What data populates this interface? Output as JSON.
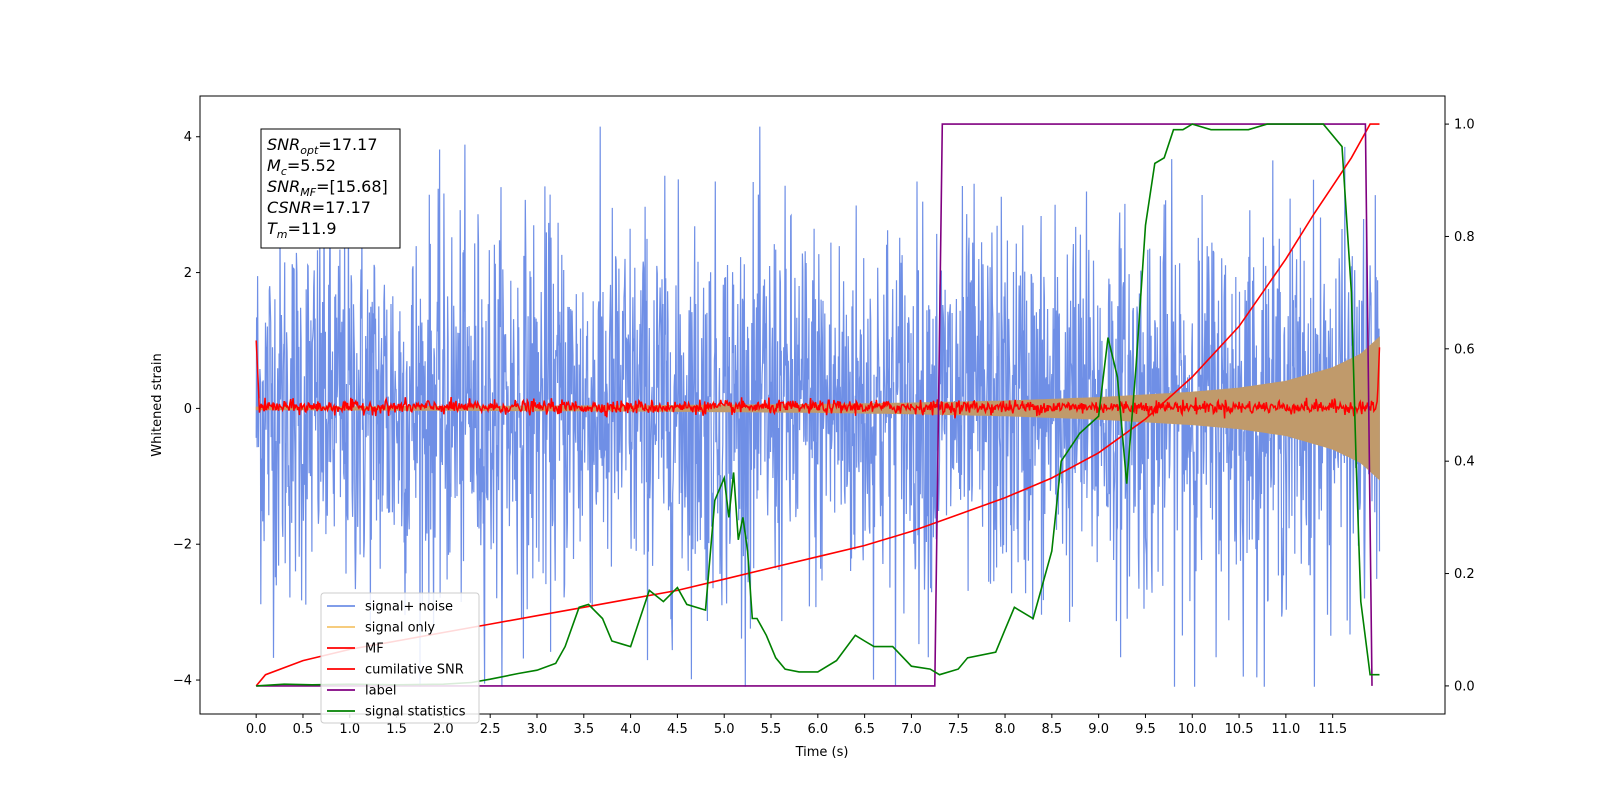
{
  "chart_data": {
    "type": "line",
    "title": "",
    "xlabel": "Time (s)",
    "ylabel": "Whitened strain",
    "xlim": [
      -0.6,
      12.7
    ],
    "ylim": [
      -4.5,
      4.6
    ],
    "y2lim": [
      -0.05,
      1.05
    ],
    "xticks": [
      0.0,
      0.5,
      1.0,
      1.5,
      2.0,
      2.5,
      3.0,
      3.5,
      4.0,
      4.5,
      5.0,
      5.5,
      6.0,
      6.5,
      7.0,
      7.5,
      8.0,
      8.5,
      9.0,
      9.5,
      10.0,
      10.5,
      11.0,
      11.5
    ],
    "xtick_labels": [
      "0.0",
      "0.5",
      "1.0",
      "1.5",
      "2.0",
      "2.5",
      "3.0",
      "3.5",
      "4.0",
      "4.5",
      "5.0",
      "5.5",
      "6.0",
      "6.5",
      "7.0",
      "7.5",
      "8.0",
      "8.5",
      "9.0",
      "9.5",
      "10.0",
      "10.5",
      "11.0",
      "11.5"
    ],
    "yticks": [
      -4,
      -2,
      0,
      2,
      4
    ],
    "ytick_labels": [
      "−4",
      "−2",
      "0",
      "2",
      "4"
    ],
    "y2ticks": [
      0.0,
      0.2,
      0.4,
      0.6,
      0.8,
      1.0
    ],
    "y2tick_labels": [
      "0.0",
      "0.2",
      "0.4",
      "0.6",
      "0.8",
      "1.0"
    ],
    "legend_position": "lower-left",
    "grid": false,
    "annotation": [
      {
        "sym": "SNR",
        "sub": "opt",
        "value": "=17.17"
      },
      {
        "sym": "M",
        "sub": "c",
        "value": "=5.52"
      },
      {
        "sym": "SNR",
        "sub": "MF",
        "value": "=[15.68]"
      },
      {
        "sym": "CSNR",
        "sub": "",
        "value": "=17.17"
      },
      {
        "sym": "T",
        "sub": "m",
        "value": "=11.9"
      }
    ],
    "series": [
      {
        "name": "signal+ noise",
        "color": "#6f8fe6",
        "axis": "left",
        "kind": "noise",
        "t_end": 12.0,
        "amplitude": 1.4
      },
      {
        "name": "signal only",
        "color": "#f5c56b",
        "axis": "left",
        "kind": "chirp-envelope",
        "t_end": 12.0,
        "envelope_x": [
          0,
          2,
          4,
          6,
          7,
          8,
          9,
          10,
          10.5,
          11,
          11.5,
          11.8,
          12.0
        ],
        "envelope_y": [
          0.02,
          0.03,
          0.04,
          0.06,
          0.08,
          0.11,
          0.16,
          0.24,
          0.3,
          0.4,
          0.6,
          0.8,
          1.05
        ]
      },
      {
        "name": "MF",
        "color": "#ff0000",
        "axis": "left",
        "kind": "mf-noise",
        "t_end": 12.0,
        "amplitude": 0.05
      },
      {
        "name": "cumilative SNR",
        "color": "#ff0000",
        "axis": "right",
        "x": [
          0,
          0.1,
          0.5,
          1,
          1.5,
          2,
          2.5,
          3,
          3.5,
          4,
          4.5,
          5,
          5.5,
          6,
          6.5,
          7,
          7.5,
          8,
          8.5,
          9,
          9.5,
          10,
          10.5,
          11,
          11.3,
          11.5,
          11.7,
          11.8,
          11.9,
          12.0
        ],
        "y": [
          0.0,
          0.02,
          0.045,
          0.065,
          0.08,
          0.095,
          0.11,
          0.125,
          0.14,
          0.155,
          0.17,
          0.19,
          0.21,
          0.23,
          0.25,
          0.275,
          0.305,
          0.335,
          0.37,
          0.415,
          0.475,
          0.55,
          0.64,
          0.76,
          0.84,
          0.89,
          0.94,
          0.97,
          1.0,
          1.0
        ]
      },
      {
        "name": "label",
        "color": "#800080",
        "axis": "right",
        "x": [
          0,
          7.25,
          7.33,
          11.85,
          11.92
        ],
        "y": [
          0,
          0,
          1,
          1,
          0
        ]
      },
      {
        "name": "signal statistics",
        "color": "#008000",
        "axis": "right",
        "x": [
          0,
          0.3,
          0.6,
          1.0,
          1.5,
          2.0,
          2.3,
          2.5,
          2.8,
          3.0,
          3.2,
          3.3,
          3.45,
          3.55,
          3.7,
          3.8,
          3.9,
          4.0,
          4.2,
          4.35,
          4.5,
          4.6,
          4.8,
          4.9,
          5.0,
          5.05,
          5.1,
          5.15,
          5.2,
          5.25,
          5.3,
          5.35,
          5.45,
          5.55,
          5.65,
          5.8,
          6.0,
          6.2,
          6.4,
          6.5,
          6.6,
          6.8,
          7.0,
          7.2,
          7.3,
          7.5,
          7.6,
          7.9,
          8.0,
          8.1,
          8.3,
          8.5,
          8.6,
          8.8,
          9.0,
          9.1,
          9.2,
          9.3,
          9.4,
          9.5,
          9.6,
          9.7,
          9.8,
          9.9,
          10.0,
          10.2,
          10.4,
          10.6,
          10.8,
          11.0,
          11.2,
          11.4,
          11.6,
          11.7,
          11.75,
          11.8,
          11.9,
          12.0
        ],
        "y": [
          0.0,
          0.003,
          0.002,
          0.003,
          0.002,
          0.003,
          0.006,
          0.012,
          0.022,
          0.028,
          0.04,
          0.07,
          0.14,
          0.145,
          0.12,
          0.08,
          0.075,
          0.07,
          0.17,
          0.15,
          0.175,
          0.145,
          0.135,
          0.33,
          0.37,
          0.3,
          0.38,
          0.26,
          0.3,
          0.24,
          0.12,
          0.12,
          0.09,
          0.05,
          0.03,
          0.025,
          0.025,
          0.045,
          0.09,
          0.08,
          0.07,
          0.07,
          0.035,
          0.03,
          0.02,
          0.03,
          0.05,
          0.06,
          0.1,
          0.14,
          0.12,
          0.24,
          0.4,
          0.45,
          0.48,
          0.62,
          0.55,
          0.36,
          0.57,
          0.82,
          0.93,
          0.94,
          0.99,
          0.99,
          1.0,
          0.99,
          0.99,
          0.99,
          1.0,
          1.0,
          1.0,
          1.0,
          0.96,
          0.7,
          0.4,
          0.15,
          0.02,
          0.02
        ]
      }
    ]
  }
}
